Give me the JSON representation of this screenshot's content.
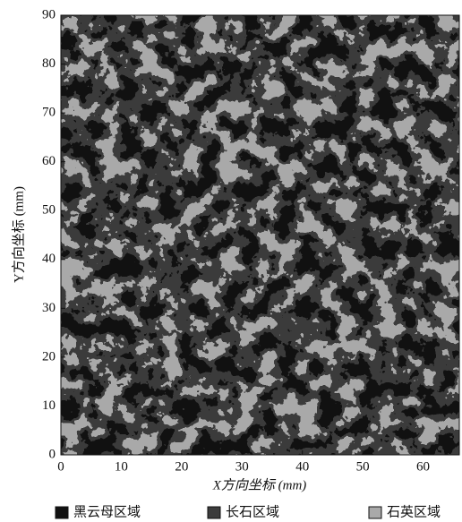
{
  "chart_data": {
    "type": "map",
    "xlabel": "X方向坐标 (mm)",
    "ylabel": "Y方向坐标 (mm)",
    "xlim": [
      0,
      66
    ],
    "ylim": [
      0,
      90
    ],
    "xticks": [
      0,
      10,
      20,
      30,
      40,
      50,
      60
    ],
    "yticks": [
      0,
      10,
      20,
      30,
      40,
      50,
      60,
      70,
      80,
      90
    ],
    "series": [
      {
        "name": "黑云母区域",
        "color": "#111111"
      },
      {
        "name": "长石区域",
        "color": "#3c3c3c"
      },
      {
        "name": "石英区域",
        "color": "#a9a9a9"
      }
    ]
  }
}
